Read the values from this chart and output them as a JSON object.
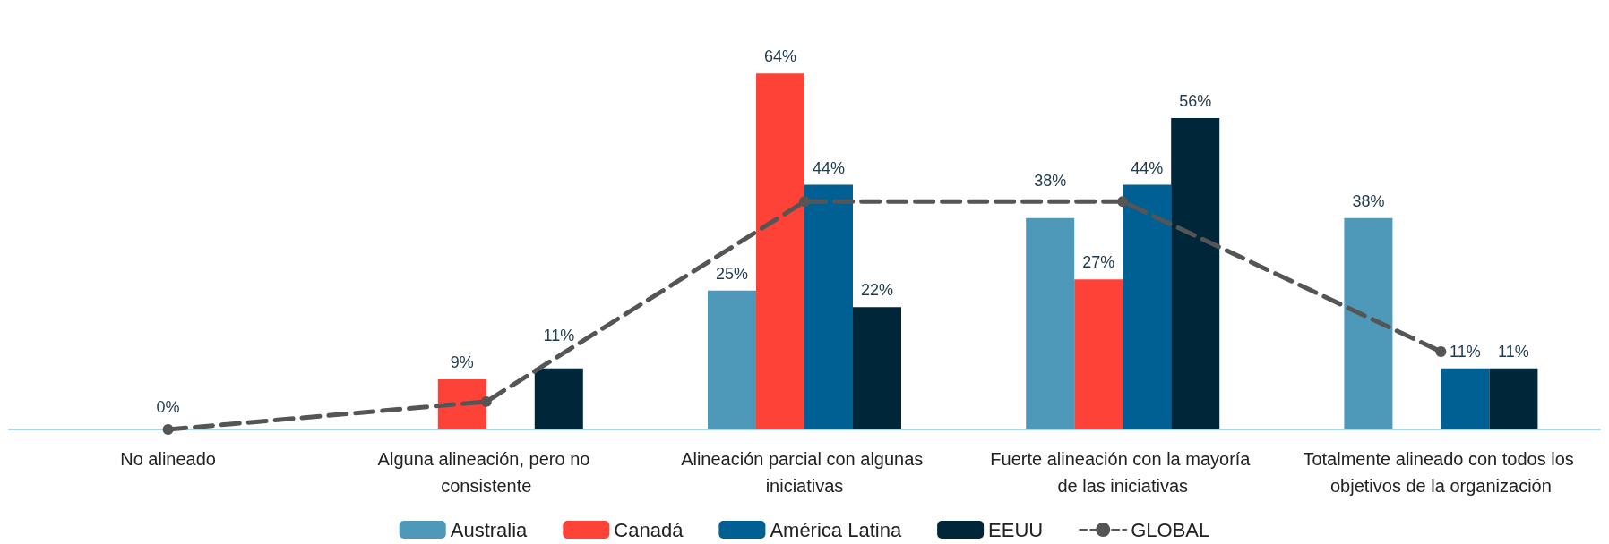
{
  "chart_data": {
    "type": "bar",
    "categories": [
      "No alineado",
      "Alguna alineación, pero no consistente",
      "Alineación parcial con algunas iniciativas",
      "Fuerte alineación con la mayoría de las iniciativas",
      "Totalmente alineado con todos los objetivos de la organización"
    ],
    "series": [
      {
        "name": "Australia",
        "color": "#4e98ba",
        "values": [
          0,
          0,
          25,
          38,
          38
        ],
        "value_labels": [
          null,
          null,
          "25%",
          "38%",
          "38%"
        ]
      },
      {
        "name": "Canadá",
        "color": "#ff4238",
        "values": [
          0,
          9,
          64,
          27,
          0
        ],
        "value_labels": [
          null,
          "9%",
          "64%",
          "27%",
          null
        ]
      },
      {
        "name": "América Latina",
        "color": "#006094",
        "values": [
          0,
          0,
          44,
          44,
          11
        ],
        "value_labels": [
          null,
          null,
          "44%",
          "44%",
          "11%"
        ]
      },
      {
        "name": "EEUU",
        "color": "#00263a",
        "values": [
          0,
          11,
          22,
          56,
          11
        ],
        "value_labels": [
          null,
          "11%",
          "22%",
          "56%",
          "11%"
        ]
      },
      {
        "name": "GLOBAL",
        "type": "line",
        "color": "#555555",
        "values": [
          0,
          5,
          41,
          41,
          14
        ],
        "value_labels": [
          "0%",
          null,
          null,
          null,
          null
        ],
        "marker": "circle",
        "line_style": "dashed"
      }
    ],
    "legend": "bottom",
    "tick_labels": "x"
  }
}
